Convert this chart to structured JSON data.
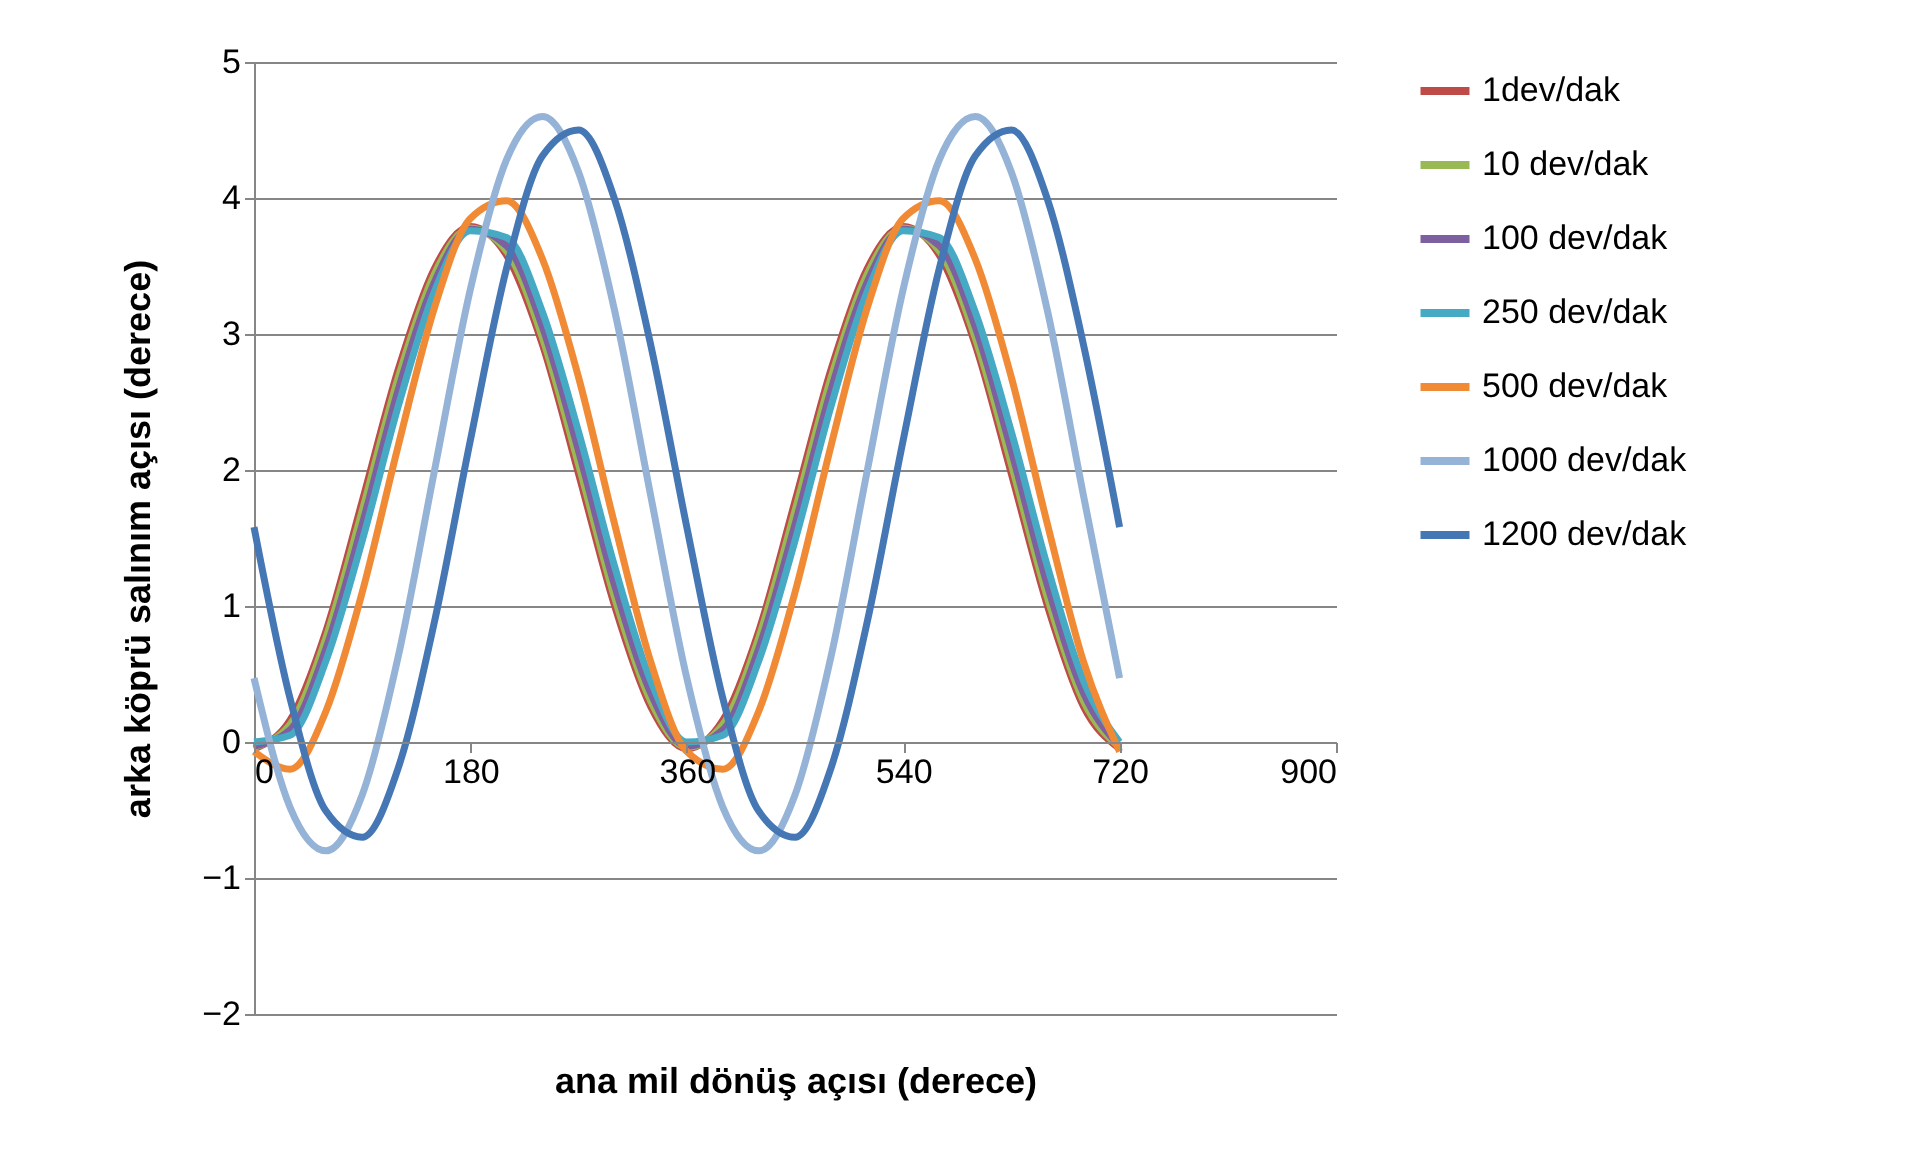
{
  "chart_data": {
    "type": "line",
    "xlabel": "ana mil dönüş açısı (derece)",
    "ylabel": "arka köprü salınım açısı (derece)",
    "x": [
      0,
      30,
      60,
      90,
      120,
      150,
      180,
      210,
      240,
      270,
      300,
      330,
      360,
      390,
      420,
      450,
      480,
      510,
      540,
      570,
      600,
      630,
      660,
      690,
      720
    ],
    "series": [
      {
        "name": "1dev/dak",
        "color": "#be4b48",
        "values": [
          -0.05,
          0.16,
          0.82,
          1.77,
          2.74,
          3.48,
          3.79,
          3.58,
          2.92,
          1.97,
          1.0,
          0.26,
          -0.05,
          0.16,
          0.82,
          1.77,
          2.74,
          3.48,
          3.79,
          3.58,
          2.92,
          1.97,
          1.0,
          0.26,
          -0.05
        ]
      },
      {
        "name": "10 dev/dak",
        "color": "#98b954",
        "values": [
          -0.04,
          0.13,
          0.77,
          1.7,
          2.68,
          3.44,
          3.78,
          3.61,
          2.97,
          2.04,
          1.06,
          0.3,
          -0.04,
          0.13,
          0.77,
          1.7,
          2.68,
          3.44,
          3.78,
          3.61,
          2.97,
          2.04,
          1.06,
          0.3,
          -0.04
        ]
      },
      {
        "name": "100 dev/dak",
        "color": "#7d60a0",
        "values": [
          -0.03,
          0.09,
          0.69,
          1.6,
          2.59,
          3.38,
          3.77,
          3.65,
          3.05,
          2.14,
          1.15,
          0.36,
          -0.03,
          0.09,
          0.69,
          1.6,
          2.59,
          3.38,
          3.77,
          3.65,
          3.05,
          2.14,
          1.15,
          0.36,
          -0.03
        ]
      },
      {
        "name": "250 dev/dak",
        "color": "#46aac5",
        "values": [
          0.0,
          0.05,
          0.6,
          1.48,
          2.47,
          3.31,
          3.76,
          3.71,
          3.16,
          2.28,
          1.29,
          0.45,
          0.0,
          0.05,
          0.6,
          1.48,
          2.47,
          3.31,
          3.76,
          3.71,
          3.16,
          2.28,
          1.29,
          0.45,
          0.0
        ]
      },
      {
        "name": "500 dev/dak",
        "color": "#f08a35",
        "values": [
          -0.07,
          -0.2,
          0.23,
          1.1,
          2.18,
          3.19,
          3.85,
          3.98,
          3.55,
          2.68,
          1.6,
          0.59,
          -0.07,
          -0.2,
          0.23,
          1.1,
          2.18,
          3.19,
          3.85,
          3.98,
          3.55,
          2.68,
          1.6,
          0.59,
          -0.07
        ]
      },
      {
        "name": "1000 dev/dak",
        "color": "#95b3d7",
        "values": [
          0.47,
          -0.48,
          -0.8,
          -0.39,
          0.63,
          1.99,
          3.33,
          4.28,
          4.6,
          4.19,
          3.17,
          1.81,
          0.47,
          -0.48,
          -0.8,
          -0.39,
          0.63,
          1.99,
          3.33,
          4.28,
          4.6,
          4.19,
          3.17,
          1.81,
          0.47
        ]
      },
      {
        "name": "1200 dev/dak",
        "color": "#4577b5",
        "values": [
          1.58,
          0.32,
          -0.51,
          -0.7,
          -0.19,
          0.88,
          2.22,
          3.48,
          4.31,
          4.5,
          3.99,
          2.92,
          1.58,
          0.32,
          -0.51,
          -0.7,
          -0.19,
          0.88,
          2.22,
          3.48,
          4.31,
          4.5,
          3.99,
          2.92,
          1.58
        ]
      }
    ],
    "xlim": [
      0,
      900
    ],
    "xticks": [
      0,
      180,
      360,
      540,
      720,
      900
    ],
    "ylim": [
      -2,
      5
    ],
    "yticks": [
      -2,
      -1,
      0,
      1,
      2,
      3,
      4,
      5
    ],
    "grid": "y",
    "legend": "right",
    "line_style": "solid",
    "marker": "none"
  }
}
